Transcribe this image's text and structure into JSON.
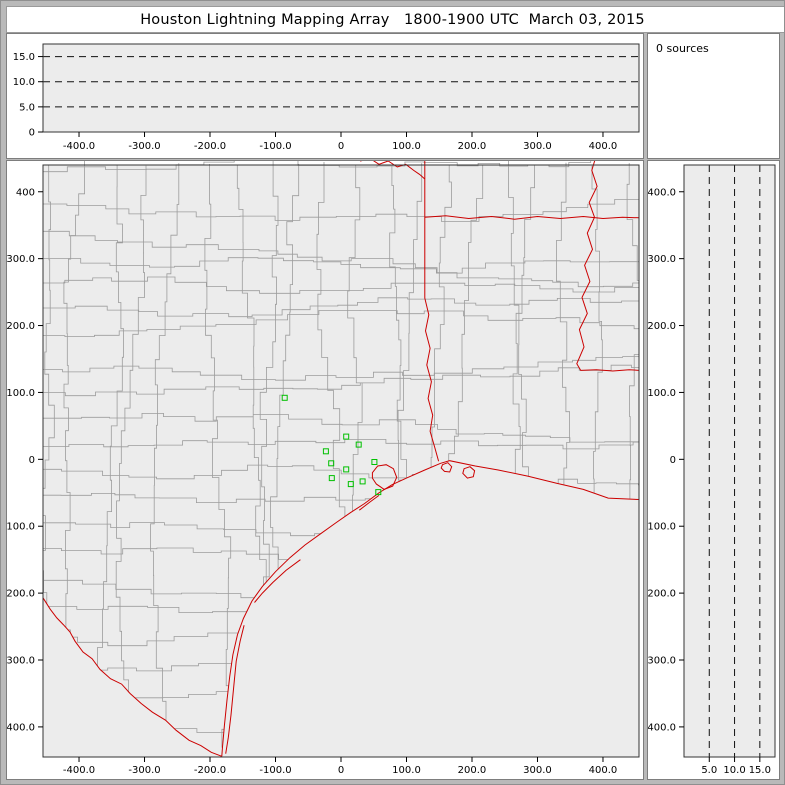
{
  "window": {
    "title": "Houston Lightning Mapping Array   1800-1900 UTC  March 03, 2015"
  },
  "sources_panel": {
    "label": "0 sources"
  },
  "chart_data": {
    "type": "scatter",
    "title": "Houston Lightning Mapping Array",
    "time_range_utc": "1800-1900 UTC",
    "date": "March 03, 2015",
    "sources_count": 0,
    "lightning_points": [],
    "panels": {
      "alt_ew": {
        "xlim_km": [
          -455,
          455
        ],
        "alt_lim_km": [
          0,
          17.5
        ],
        "x_ticks": {
          "values": [
            -400,
            -300,
            -200,
            -100,
            0,
            100,
            200,
            300,
            400
          ],
          "labels": [
            "-400.0",
            "-300.0",
            "-200.0",
            "-100.0",
            "0",
            "100.0",
            "200.0",
            "300.0",
            "400.0"
          ]
        },
        "y_ticks": {
          "values": [
            15,
            10,
            5,
            0
          ],
          "labels": [
            "15.0",
            "10.0",
            "5.0",
            "0"
          ]
        },
        "dashed_levels_km": [
          5,
          10,
          15
        ]
      },
      "map": {
        "xlim_km": [
          -455,
          455
        ],
        "ylim_km": [
          -445,
          440
        ],
        "x_ticks": {
          "values": [
            -400,
            -300,
            -200,
            -100,
            0,
            100,
            200,
            300,
            400
          ],
          "labels": [
            "-400.0",
            "-300.0",
            "-200.0",
            "-100.0",
            "0",
            "100.0",
            "200.0",
            "300.0",
            "400.0"
          ]
        },
        "y_ticks": {
          "values": [
            400,
            300,
            200,
            100,
            0,
            -100,
            -200,
            -300,
            -400
          ],
          "labels": [
            "400",
            "300.0",
            "200.0",
            "100.0",
            "0",
            "-100.0",
            "-200.0",
            "-300.0",
            "-400.0"
          ]
        }
      },
      "alt_ns": {
        "alt_lim_km": [
          0,
          18
        ],
        "ylim_km": [
          -445,
          440
        ],
        "x_ticks": {
          "values": [
            5,
            10,
            15
          ],
          "labels": [
            "5.0",
            "10.0",
            "15.0"
          ]
        },
        "y_ticks": {
          "values": [
            400,
            300,
            200,
            100,
            0,
            -100,
            -200,
            -300,
            -400
          ],
          "labels": [
            "400.0",
            "300.0",
            "200.0",
            "100.0",
            "0",
            "-100.0",
            "-200.0",
            "-300.0",
            "-400.0"
          ]
        },
        "dashed_levels_km": [
          5,
          10,
          15
        ]
      }
    },
    "stations_km": [
      [
        -86,
        92
      ],
      [
        8,
        34
      ],
      [
        27,
        22
      ],
      [
        -23,
        12
      ],
      [
        -15,
        -6
      ],
      [
        51,
        -4
      ],
      [
        8,
        -15
      ],
      [
        -14,
        -28
      ],
      [
        33,
        -33
      ],
      [
        15,
        -37
      ],
      [
        57,
        -49
      ]
    ],
    "geo": {
      "coast": [
        [
          455,
          -60
        ],
        [
          408,
          -58
        ],
        [
          370,
          -45
        ],
        [
          330,
          -36
        ],
        [
          285,
          -25
        ],
        [
          240,
          -16
        ],
        [
          205,
          -10
        ],
        [
          166,
          -2
        ],
        [
          152,
          -6
        ],
        [
          128,
          -16
        ],
        [
          100,
          -28
        ],
        [
          78,
          -38
        ],
        [
          58,
          -50
        ],
        [
          36,
          -66
        ],
        [
          14,
          -80
        ],
        [
          -8,
          -95
        ],
        [
          -32,
          -112
        ],
        [
          -55,
          -128
        ],
        [
          -78,
          -147
        ],
        [
          -100,
          -168
        ],
        [
          -120,
          -190
        ],
        [
          -136,
          -212
        ],
        [
          -149,
          -238
        ],
        [
          -158,
          -262
        ],
        [
          -165,
          -292
        ],
        [
          -170,
          -325
        ],
        [
          -174,
          -360
        ],
        [
          -178,
          -398
        ],
        [
          -181,
          -430
        ],
        [
          -182,
          -444
        ]
      ],
      "rio_grande": [
        [
          -182,
          -444
        ],
        [
          -198,
          -438
        ],
        [
          -214,
          -428
        ],
        [
          -232,
          -420
        ],
        [
          -252,
          -405
        ],
        [
          -268,
          -390
        ],
        [
          -288,
          -378
        ],
        [
          -305,
          -365
        ],
        [
          -322,
          -350
        ],
        [
          -335,
          -336
        ],
        [
          -352,
          -328
        ],
        [
          -368,
          -314
        ],
        [
          -380,
          -298
        ],
        [
          -394,
          -288
        ],
        [
          -406,
          -272
        ],
        [
          -414,
          -258
        ],
        [
          -424,
          -247
        ],
        [
          -434,
          -237
        ],
        [
          -444,
          -224
        ],
        [
          -455,
          -207
        ]
      ],
      "state_borders": [
        [
          [
            20,
            455
          ],
          [
            30,
            446
          ],
          [
            44,
            450
          ],
          [
            58,
            441
          ],
          [
            72,
            446
          ],
          [
            86,
            437
          ],
          [
            99,
            441
          ],
          [
            111,
            432
          ],
          [
            120,
            426
          ],
          [
            128,
            419
          ]
        ],
        [
          [
            128,
            455
          ],
          [
            128,
            241
          ],
          [
            134,
            216
          ],
          [
            129,
            192
          ],
          [
            136,
            166
          ],
          [
            131,
            141
          ],
          [
            138,
            116
          ],
          [
            133,
            91
          ],
          [
            140,
            66
          ],
          [
            136,
            42
          ],
          [
            143,
            18
          ],
          [
            149,
            -3
          ]
        ],
        [
          [
            128,
            362
          ],
          [
            160,
            364
          ],
          [
            195,
            360
          ],
          [
            230,
            363
          ],
          [
            265,
            359
          ],
          [
            300,
            363
          ],
          [
            335,
            360
          ],
          [
            370,
            363
          ],
          [
            400,
            360
          ],
          [
            430,
            362
          ],
          [
            455,
            361
          ]
        ],
        [
          [
            390,
            455
          ],
          [
            383,
            432
          ],
          [
            391,
            408
          ],
          [
            379,
            384
          ],
          [
            387,
            362
          ],
          [
            376,
            338
          ],
          [
            384,
            314
          ],
          [
            372,
            290
          ],
          [
            380,
            266
          ],
          [
            368,
            242
          ],
          [
            376,
            218
          ],
          [
            364,
            194
          ],
          [
            371,
            168
          ],
          [
            360,
            143
          ],
          [
            366,
            133
          ],
          [
            390,
            134
          ],
          [
            415,
            132
          ],
          [
            440,
            134
          ],
          [
            455,
            133
          ]
        ]
      ],
      "islands": [
        [
          [
            -148,
            -248
          ],
          [
            -154,
            -272
          ],
          [
            -160,
            -302
          ],
          [
            -164,
            -342
          ],
          [
            -168,
            -382
          ],
          [
            -172,
            -416
          ],
          [
            -176,
            -440
          ]
        ],
        [
          [
            -62,
            -150
          ],
          [
            -84,
            -166
          ],
          [
            -104,
            -184
          ],
          [
            -120,
            -200
          ],
          [
            -132,
            -214
          ]
        ],
        [
          [
            28,
            -76
          ],
          [
            44,
            -64
          ],
          [
            58,
            -54
          ]
        ]
      ],
      "lakes": [
        [
          [
            48,
            -20
          ],
          [
            56,
            -10
          ],
          [
            69,
            -8
          ],
          [
            80,
            -14
          ],
          [
            85,
            -27
          ],
          [
            79,
            -40
          ],
          [
            66,
            -45
          ],
          [
            54,
            -37
          ],
          [
            48,
            -28
          ]
        ],
        [
          [
            155,
            -8
          ],
          [
            163,
            -5
          ],
          [
            169,
            -11
          ],
          [
            166,
            -19
          ],
          [
            158,
            -18
          ],
          [
            153,
            -13
          ]
        ],
        [
          [
            188,
            -14
          ],
          [
            197,
            -11
          ],
          [
            204,
            -17
          ],
          [
            202,
            -26
          ],
          [
            193,
            -28
          ],
          [
            186,
            -21
          ]
        ]
      ]
    },
    "colors": {
      "state_border": "#cc0000",
      "county_line": "#9c9c9c",
      "station": "#00c000",
      "plot_bg": "#ececec",
      "dashed_line": "#111111",
      "panel_bg": "#ffffff",
      "window_bg": "#b9b9b9",
      "text": "#000000"
    }
  }
}
